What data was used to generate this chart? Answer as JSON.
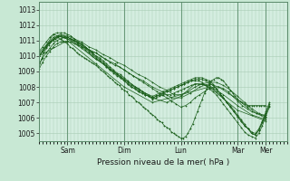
{
  "bg_color": "#c8e8d4",
  "plot_bg_color": "#d4ede0",
  "grid_color": "#a8ccb4",
  "line_color": "#1a5e1a",
  "xlabel": "Pression niveau de la mer( hPa )",
  "ylim": [
    1004.5,
    1013.5
  ],
  "yticks": [
    1005,
    1006,
    1007,
    1008,
    1009,
    1010,
    1011,
    1012,
    1013
  ],
  "xlim": [
    0,
    210
  ],
  "day_ticks": [
    24,
    72,
    120,
    168,
    192
  ],
  "day_labels": [
    "Sam",
    "Dim",
    "Lun",
    "Mar",
    "Mer"
  ],
  "series": [
    {
      "x": [
        0,
        2,
        4,
        6,
        8,
        10,
        12,
        14,
        16,
        18,
        20,
        22,
        24,
        26,
        28,
        30,
        32,
        34,
        36,
        38,
        40,
        42,
        44,
        46,
        48,
        50,
        52,
        54,
        56,
        58,
        60,
        62,
        64,
        66,
        68,
        70,
        72,
        74,
        76,
        78,
        80,
        82,
        84,
        86,
        88,
        90,
        92,
        94,
        96,
        98,
        100,
        102,
        104,
        106,
        108,
        110,
        112,
        114,
        116,
        118,
        120,
        122,
        124,
        126,
        128,
        130,
        132,
        134,
        136,
        138,
        140,
        142,
        144,
        146,
        148,
        150,
        152,
        154,
        156,
        158,
        160,
        162,
        164,
        166,
        168,
        170,
        172,
        174,
        176,
        178,
        180,
        182,
        184,
        186,
        188,
        190,
        192
      ],
      "y": [
        1009.3,
        1009.8,
        1010.2,
        1010.5,
        1010.7,
        1010.9,
        1011.0,
        1011.1,
        1011.2,
        1011.1,
        1011.0,
        1010.9,
        1010.8,
        1010.6,
        1010.5,
        1010.4,
        1010.2,
        1010.1,
        1010.0,
        1009.9,
        1009.8,
        1009.7,
        1009.6,
        1009.5,
        1009.4,
        1009.3,
        1009.1,
        1009.0,
        1008.9,
        1008.7,
        1008.6,
        1008.5,
        1008.3,
        1008.2,
        1008.1,
        1007.9,
        1007.8,
        1007.7,
        1007.5,
        1007.4,
        1007.3,
        1007.1,
        1007.0,
        1006.9,
        1006.7,
        1006.6,
        1006.5,
        1006.3,
        1006.2,
        1006.1,
        1005.9,
        1005.8,
        1005.7,
        1005.5,
        1005.4,
        1005.3,
        1005.1,
        1005.0,
        1004.9,
        1004.8,
        1004.7,
        1004.7,
        1004.8,
        1005.0,
        1005.3,
        1005.6,
        1006.0,
        1006.4,
        1006.8,
        1007.2,
        1007.6,
        1007.9,
        1008.2,
        1008.4,
        1008.5,
        1008.6,
        1008.6,
        1008.5,
        1008.4,
        1008.2,
        1008.0,
        1007.8,
        1007.6,
        1007.4,
        1007.2,
        1007.1,
        1007.0,
        1006.9,
        1006.8,
        1006.8,
        1006.8,
        1006.8,
        1006.8,
        1006.8,
        1006.8,
        1006.8,
        1006.8
      ]
    },
    {
      "x": [
        0,
        4,
        8,
        12,
        16,
        20,
        24,
        28,
        32,
        36,
        40,
        44,
        48,
        52,
        56,
        60,
        64,
        68,
        72,
        76,
        80,
        84,
        88,
        92,
        96,
        100,
        104,
        108,
        112,
        116,
        120,
        124,
        128,
        132,
        136,
        140,
        144,
        148,
        152,
        156,
        160,
        164,
        168,
        172,
        176,
        180,
        184,
        188,
        192
      ],
      "y": [
        1010.0,
        1010.4,
        1010.8,
        1011.1,
        1011.3,
        1011.2,
        1011.1,
        1011.0,
        1010.8,
        1010.6,
        1010.5,
        1010.3,
        1010.2,
        1010.0,
        1009.8,
        1009.6,
        1009.4,
        1009.3,
        1009.1,
        1008.9,
        1008.7,
        1008.5,
        1008.3,
        1008.1,
        1007.9,
        1007.7,
        1007.5,
        1007.3,
        1007.1,
        1006.9,
        1006.7,
        1006.8,
        1007.0,
        1007.3,
        1007.5,
        1007.7,
        1007.9,
        1008.0,
        1008.0,
        1007.9,
        1007.7,
        1007.4,
        1007.1,
        1006.8,
        1006.6,
        1006.4,
        1006.3,
        1006.2,
        1006.2
      ]
    },
    {
      "x": [
        0,
        6,
        12,
        18,
        24,
        30,
        36,
        42,
        48,
        54,
        60,
        66,
        72,
        78,
        84,
        90,
        96,
        102,
        108,
        114,
        120,
        126,
        132,
        138,
        144,
        150,
        156,
        162,
        168,
        174,
        180,
        186,
        192
      ],
      "y": [
        1010.2,
        1010.7,
        1011.2,
        1011.4,
        1011.3,
        1011.1,
        1010.9,
        1010.6,
        1010.4,
        1010.1,
        1009.9,
        1009.6,
        1009.4,
        1009.1,
        1008.8,
        1008.6,
        1008.3,
        1008.0,
        1007.8,
        1007.5,
        1007.5,
        1007.7,
        1008.0,
        1008.2,
        1008.3,
        1008.3,
        1008.1,
        1007.8,
        1007.4,
        1007.0,
        1006.6,
        1006.3,
        1006.1
      ]
    },
    {
      "x": [
        0,
        8,
        16,
        24,
        32,
        40,
        48,
        56,
        64,
        72,
        80,
        88,
        96,
        104,
        112,
        120,
        128,
        136,
        144,
        152,
        160,
        168,
        176,
        184,
        192
      ],
      "y": [
        1010.0,
        1010.8,
        1011.3,
        1011.2,
        1010.9,
        1010.5,
        1010.2,
        1009.8,
        1009.5,
        1009.1,
        1008.7,
        1008.4,
        1008.0,
        1007.7,
        1007.3,
        1007.3,
        1007.6,
        1008.0,
        1008.2,
        1008.0,
        1007.6,
        1007.2,
        1006.7,
        1006.3,
        1006.0
      ]
    },
    {
      "x": [
        0,
        12,
        24,
        36,
        48,
        60,
        72,
        84,
        96,
        108,
        120,
        132,
        144,
        156,
        168,
        180,
        192
      ],
      "y": [
        1010.0,
        1011.4,
        1011.1,
        1010.5,
        1009.8,
        1009.2,
        1008.5,
        1007.9,
        1007.3,
        1007.0,
        1007.4,
        1008.2,
        1008.1,
        1007.5,
        1006.8,
        1006.2,
        1005.9
      ]
    },
    {
      "x": [
        0,
        24,
        48,
        72,
        96,
        120,
        144,
        168,
        192
      ],
      "y": [
        1010.0,
        1011.0,
        1009.5,
        1008.0,
        1007.0,
        1007.5,
        1008.0,
        1006.5,
        1005.8
      ]
    },
    {
      "x": [
        0,
        3,
        6,
        9,
        12,
        15,
        18,
        21,
        24,
        27,
        30,
        33,
        36,
        39,
        42,
        45,
        48,
        51,
        54,
        57,
        60,
        63,
        66,
        69,
        72,
        75,
        78,
        81,
        84,
        87,
        90,
        93,
        96,
        99,
        102,
        105,
        108,
        111,
        114,
        117,
        120,
        123,
        126,
        129,
        132,
        135,
        138,
        141,
        144,
        147,
        150,
        153,
        156,
        159,
        162,
        165,
        168,
        171,
        174,
        177,
        180,
        183,
        186,
        189,
        192,
        195
      ],
      "y": [
        1009.5,
        1009.9,
        1010.2,
        1010.5,
        1010.8,
        1011.0,
        1011.1,
        1011.2,
        1011.2,
        1011.1,
        1011.0,
        1010.9,
        1010.8,
        1010.6,
        1010.4,
        1010.2,
        1010.0,
        1009.9,
        1009.7,
        1009.5,
        1009.3,
        1009.1,
        1008.9,
        1008.8,
        1008.6,
        1008.4,
        1008.2,
        1008.0,
        1007.9,
        1007.7,
        1007.5,
        1007.4,
        1007.2,
        1007.3,
        1007.4,
        1007.5,
        1007.5,
        1007.5,
        1007.6,
        1007.7,
        1007.8,
        1007.9,
        1008.0,
        1008.1,
        1008.2,
        1008.2,
        1008.2,
        1008.1,
        1008.0,
        1007.9,
        1007.7,
        1007.5,
        1007.3,
        1007.0,
        1006.8,
        1006.5,
        1006.2,
        1005.9,
        1005.6,
        1005.3,
        1005.0,
        1004.9,
        1005.2,
        1005.7,
        1006.2,
        1006.8
      ]
    },
    {
      "x": [
        0,
        3,
        6,
        9,
        12,
        15,
        18,
        21,
        24,
        27,
        30,
        33,
        36,
        39,
        42,
        45,
        48,
        51,
        54,
        57,
        60,
        63,
        66,
        69,
        72,
        75,
        78,
        81,
        84,
        87,
        90,
        93,
        96,
        99,
        102,
        105,
        108,
        111,
        114,
        117,
        120,
        123,
        126,
        129,
        132,
        135,
        138,
        141,
        144,
        147,
        150,
        153,
        156,
        159,
        162,
        165,
        168,
        171,
        174,
        177,
        180,
        183,
        186,
        189,
        192,
        195
      ],
      "y": [
        1010.0,
        1010.3,
        1010.6,
        1010.9,
        1011.1,
        1011.2,
        1011.3,
        1011.3,
        1011.2,
        1011.1,
        1011.0,
        1010.8,
        1010.7,
        1010.5,
        1010.3,
        1010.1,
        1009.9,
        1009.7,
        1009.5,
        1009.3,
        1009.1,
        1009.0,
        1008.8,
        1008.6,
        1008.4,
        1008.2,
        1008.0,
        1007.9,
        1007.7,
        1007.6,
        1007.5,
        1007.4,
        1007.3,
        1007.4,
        1007.5,
        1007.6,
        1007.7,
        1007.8,
        1007.9,
        1008.0,
        1008.1,
        1008.2,
        1008.3,
        1008.4,
        1008.5,
        1008.5,
        1008.5,
        1008.4,
        1008.3,
        1008.1,
        1007.9,
        1007.6,
        1007.3,
        1007.0,
        1006.7,
        1006.4,
        1006.1,
        1005.8,
        1005.5,
        1005.3,
        1005.0,
        1004.9,
        1005.2,
        1005.7,
        1006.3,
        1006.9
      ]
    },
    {
      "x": [
        0,
        3,
        6,
        9,
        12,
        15,
        18,
        21,
        24,
        27,
        30,
        33,
        36,
        39,
        42,
        45,
        48,
        51,
        54,
        57,
        60,
        63,
        66,
        69,
        72,
        75,
        78,
        81,
        84,
        87,
        90,
        93,
        96,
        99,
        102,
        105,
        108,
        111,
        114,
        117,
        120,
        123,
        126,
        129,
        132,
        135,
        138,
        141,
        144,
        147,
        150,
        153,
        156,
        159,
        162,
        165,
        168,
        171,
        174,
        177,
        180,
        183,
        186,
        189,
        192,
        195
      ],
      "y": [
        1010.3,
        1010.6,
        1010.9,
        1011.2,
        1011.4,
        1011.5,
        1011.5,
        1011.5,
        1011.4,
        1011.3,
        1011.1,
        1010.9,
        1010.8,
        1010.6,
        1010.4,
        1010.2,
        1010.0,
        1009.8,
        1009.6,
        1009.4,
        1009.2,
        1009.0,
        1008.8,
        1008.7,
        1008.5,
        1008.3,
        1008.1,
        1008.0,
        1007.8,
        1007.7,
        1007.6,
        1007.5,
        1007.4,
        1007.5,
        1007.6,
        1007.7,
        1007.8,
        1007.9,
        1008.0,
        1008.1,
        1008.2,
        1008.3,
        1008.4,
        1008.5,
        1008.6,
        1008.6,
        1008.6,
        1008.5,
        1008.4,
        1008.2,
        1007.9,
        1007.6,
        1007.3,
        1007.0,
        1006.7,
        1006.4,
        1006.1,
        1005.8,
        1005.5,
        1005.3,
        1005.1,
        1005.0,
        1005.3,
        1005.8,
        1006.4,
        1007.0
      ]
    },
    {
      "x": [
        0,
        3,
        6,
        9,
        12,
        15,
        18,
        21,
        24,
        27,
        30,
        33,
        36,
        39,
        42,
        45,
        48,
        51,
        54,
        57,
        60,
        63,
        66,
        69,
        72,
        75,
        78,
        81,
        84,
        87,
        90,
        93,
        96,
        99,
        102,
        105,
        108,
        111,
        114,
        117,
        120,
        123,
        126,
        129,
        132,
        135,
        138,
        141,
        144,
        147,
        150,
        153,
        156,
        159,
        162,
        165,
        168,
        171,
        174,
        177,
        180,
        183,
        186,
        189,
        192,
        195
      ],
      "y": [
        1009.2,
        1009.6,
        1010.0,
        1010.3,
        1010.6,
        1010.8,
        1010.9,
        1010.9,
        1010.9,
        1010.9,
        1010.8,
        1010.7,
        1010.6,
        1010.4,
        1010.2,
        1010.0,
        1009.8,
        1009.7,
        1009.5,
        1009.3,
        1009.1,
        1008.9,
        1008.7,
        1008.6,
        1008.4,
        1008.2,
        1008.0,
        1007.9,
        1007.7,
        1007.6,
        1007.5,
        1007.4,
        1007.3,
        1007.4,
        1007.5,
        1007.6,
        1007.7,
        1007.8,
        1007.9,
        1008.0,
        1008.1,
        1008.2,
        1008.3,
        1008.4,
        1008.4,
        1008.4,
        1008.3,
        1008.1,
        1007.9,
        1007.7,
        1007.5,
        1007.2,
        1006.9,
        1006.6,
        1006.3,
        1006.0,
        1005.7,
        1005.4,
        1005.1,
        1004.9,
        1004.8,
        1004.7,
        1005.0,
        1005.5,
        1006.1,
        1006.7
      ]
    }
  ]
}
